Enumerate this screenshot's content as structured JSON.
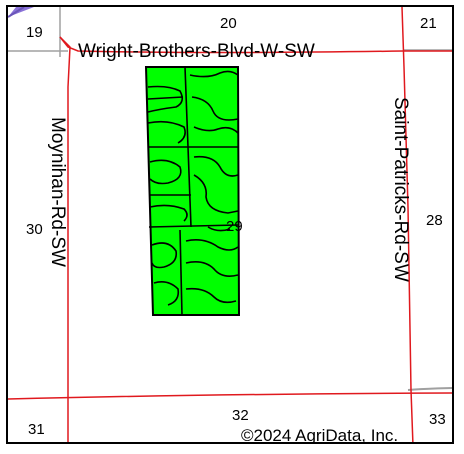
{
  "map": {
    "roads": {
      "north": "Wright-Brothers-Blvd-W-SW",
      "west": "Moynihan-Rd-SW",
      "east": "Saint-Patricks-Rd-SW"
    },
    "sections": [
      "19",
      "20",
      "21",
      "30",
      "29",
      "28",
      "31",
      "32",
      "33"
    ],
    "copyright": "©2024 AgriData, Inc.",
    "colors": {
      "field_fill": "#00ff00",
      "road_red": "#e0191e",
      "road_gray": "#a0a0a0",
      "corner_marker": "#8a72d8",
      "contour": "#000000"
    }
  }
}
